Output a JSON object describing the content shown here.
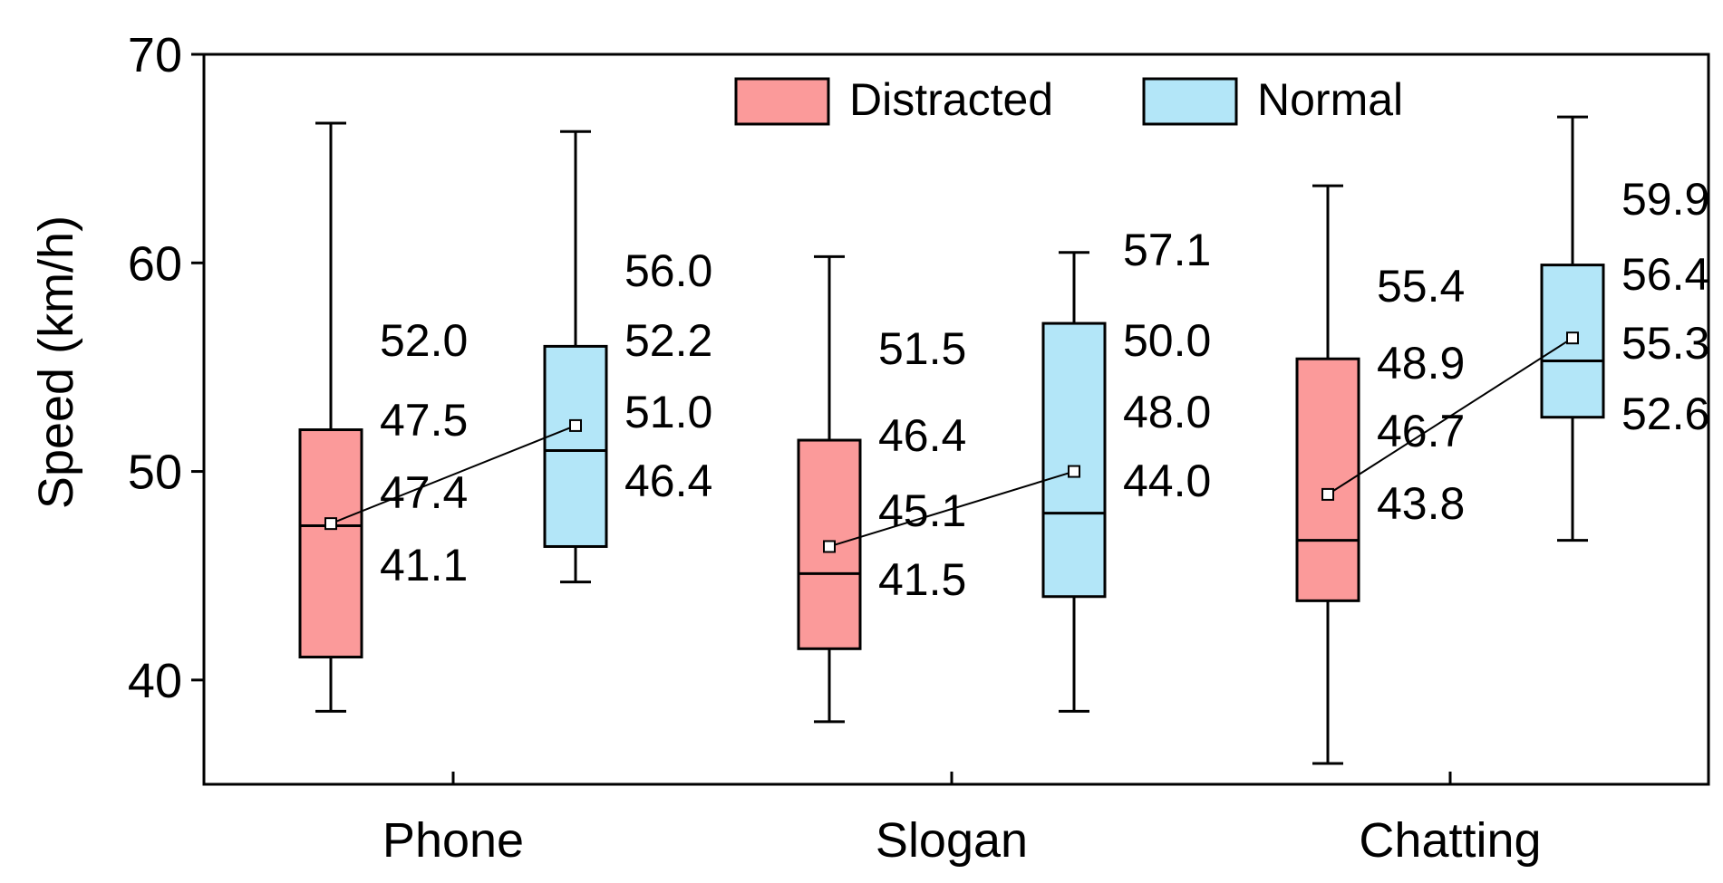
{
  "chart_data": {
    "type": "boxplot",
    "title": "",
    "xlabel": "",
    "ylabel": "Speed (km/h)",
    "ylim": [
      35,
      70
    ],
    "yticks": [
      40,
      50,
      60,
      70
    ],
    "categories": [
      "Phone",
      "Slogan",
      "Chatting"
    ],
    "legend": {
      "placement": "top-center",
      "entries": [
        {
          "name": "Distracted",
          "color": "#fb9a9a"
        },
        {
          "name": "Normal",
          "color": "#b3e6f8"
        }
      ]
    },
    "series": [
      {
        "name": "Distracted",
        "color": "#fb9a9a",
        "boxes": [
          {
            "category": "Phone",
            "whisker_low": 38.5,
            "q1": 41.1,
            "median": 47.4,
            "mean": 47.5,
            "q3": 52.0,
            "whisker_high": 66.7,
            "labels": {
              "q3": "52.0",
              "mean": "47.5",
              "median": "47.4",
              "q1": "41.1"
            }
          },
          {
            "category": "Slogan",
            "whisker_low": 38.0,
            "q1": 41.5,
            "median": 45.1,
            "mean": 46.4,
            "q3": 51.5,
            "whisker_high": 60.3,
            "labels": {
              "q3": "51.5",
              "mean": "46.4",
              "median": "45.1",
              "q1": "41.5"
            }
          },
          {
            "category": "Chatting",
            "whisker_low": 36.0,
            "q1": 43.8,
            "median": 46.7,
            "mean": 48.9,
            "q3": 55.4,
            "whisker_high": 63.7,
            "labels": {
              "q3": "55.4",
              "mean": "48.9",
              "median": "46.7",
              "q1": "43.8"
            }
          }
        ]
      },
      {
        "name": "Normal",
        "color": "#b3e6f8",
        "boxes": [
          {
            "category": "Phone",
            "whisker_low": 44.7,
            "q1": 46.4,
            "median": 51.0,
            "mean": 52.2,
            "q3": 56.0,
            "whisker_high": 66.3,
            "labels": {
              "q3": "56.0",
              "mean": "52.2",
              "median": "51.0",
              "q1": "46.4"
            }
          },
          {
            "category": "Slogan",
            "whisker_low": 38.5,
            "q1": 44.0,
            "median": 48.0,
            "mean": 50.0,
            "q3": 57.1,
            "whisker_high": 60.5,
            "labels": {
              "q3": "57.1",
              "mean": "50.0",
              "median": "48.0",
              "q1": "44.0"
            }
          },
          {
            "category": "Chatting",
            "whisker_low": 46.7,
            "q1": 52.6,
            "median": 55.3,
            "mean": 56.4,
            "q3": 59.9,
            "whisker_high": 67.0,
            "labels": {
              "q3": "59.9",
              "mean": "56.4",
              "median": "55.3",
              "q1": "52.6"
            }
          }
        ]
      }
    ]
  }
}
